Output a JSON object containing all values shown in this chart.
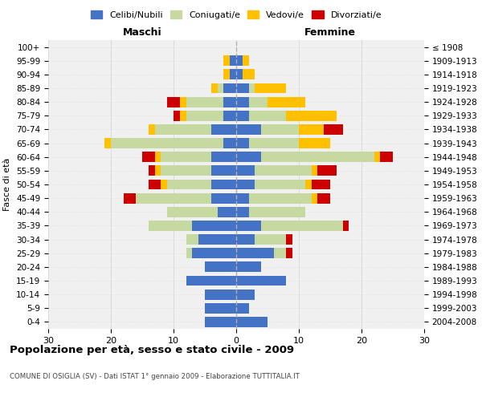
{
  "age_groups": [
    "0-4",
    "5-9",
    "10-14",
    "15-19",
    "20-24",
    "25-29",
    "30-34",
    "35-39",
    "40-44",
    "45-49",
    "50-54",
    "55-59",
    "60-64",
    "65-69",
    "70-74",
    "75-79",
    "80-84",
    "85-89",
    "90-94",
    "95-99",
    "100+"
  ],
  "birth_years": [
    "2004-2008",
    "1999-2003",
    "1994-1998",
    "1989-1993",
    "1984-1988",
    "1979-1983",
    "1974-1978",
    "1969-1973",
    "1964-1968",
    "1959-1963",
    "1954-1958",
    "1949-1953",
    "1944-1948",
    "1939-1943",
    "1934-1938",
    "1929-1933",
    "1924-1928",
    "1919-1923",
    "1914-1918",
    "1909-1913",
    "≤ 1908"
  ],
  "maschi": {
    "celibi": [
      5,
      5,
      5,
      8,
      5,
      7,
      6,
      7,
      3,
      4,
      4,
      4,
      4,
      2,
      4,
      2,
      2,
      2,
      1,
      1,
      0
    ],
    "coniugati": [
      0,
      0,
      0,
      0,
      0,
      1,
      2,
      7,
      8,
      12,
      7,
      8,
      8,
      18,
      9,
      6,
      6,
      1,
      0,
      0,
      0
    ],
    "vedovi": [
      0,
      0,
      0,
      0,
      0,
      0,
      0,
      0,
      0,
      0,
      1,
      1,
      1,
      1,
      1,
      1,
      1,
      1,
      1,
      1,
      0
    ],
    "divorziati": [
      0,
      0,
      0,
      0,
      0,
      0,
      0,
      0,
      0,
      2,
      2,
      1,
      2,
      0,
      0,
      1,
      2,
      0,
      0,
      0,
      0
    ]
  },
  "femmine": {
    "nubili": [
      5,
      2,
      3,
      8,
      4,
      6,
      3,
      4,
      2,
      2,
      3,
      3,
      4,
      2,
      4,
      2,
      2,
      2,
      1,
      1,
      0
    ],
    "coniugate": [
      0,
      0,
      0,
      0,
      0,
      2,
      5,
      13,
      9,
      10,
      8,
      9,
      18,
      8,
      6,
      6,
      3,
      1,
      0,
      0,
      0
    ],
    "vedove": [
      0,
      0,
      0,
      0,
      0,
      0,
      0,
      0,
      0,
      1,
      1,
      1,
      1,
      5,
      4,
      8,
      6,
      5,
      2,
      1,
      0
    ],
    "divorziate": [
      0,
      0,
      0,
      0,
      0,
      1,
      1,
      1,
      0,
      2,
      3,
      3,
      2,
      0,
      3,
      0,
      0,
      0,
      0,
      0,
      0
    ]
  },
  "colors": {
    "celibi": "#4472c4",
    "coniugati": "#c5d9a0",
    "vedovi": "#ffc000",
    "divorziati": "#cc0000"
  },
  "title": "Popolazione per età, sesso e stato civile - 2009",
  "subtitle": "COMUNE DI OSIGLIA (SV) - Dati ISTAT 1° gennaio 2009 - Elaborazione TUTTITALIA.IT",
  "xlabel_left": "Maschi",
  "xlabel_right": "Femmine",
  "ylabel_left": "Fasce di età",
  "xlim": 30,
  "bg_color": "#ffffff",
  "plot_bg": "#f0f0f0",
  "grid_color": "#cccccc",
  "legend_labels": [
    "Celibi/Nubili",
    "Coniugati/e",
    "Vedovi/e",
    "Divorziati/e"
  ]
}
